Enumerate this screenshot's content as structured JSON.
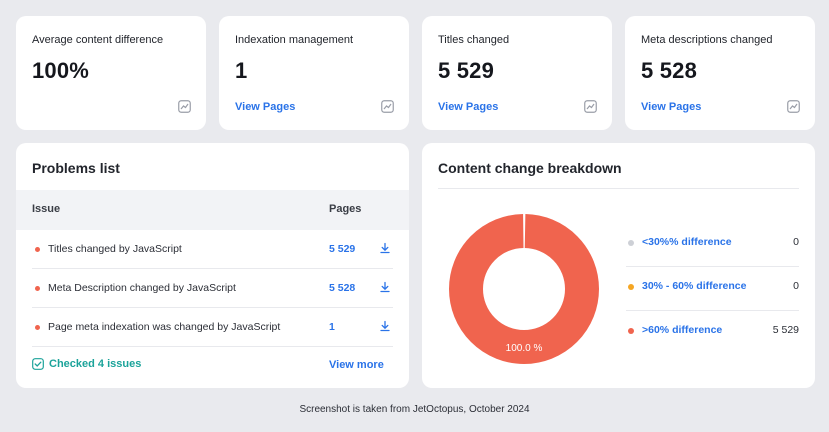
{
  "metrics": [
    {
      "title": "Average content difference",
      "value": "100%",
      "link": "",
      "icon": "chart-icon"
    },
    {
      "title": "Indexation management",
      "value": "1",
      "link": "View Pages",
      "icon": "chart-icon"
    },
    {
      "title": "Titles changed",
      "value": "5 529",
      "link": "View Pages",
      "icon": "chart-icon"
    },
    {
      "title": "Meta descriptions changed",
      "value": "5 528",
      "link": "View Pages",
      "icon": "chart-icon"
    }
  ],
  "problems": {
    "title": "Problems list",
    "col_issue": "Issue",
    "col_pages": "Pages",
    "rows": [
      {
        "issue": "Titles changed by JavaScript",
        "pages": "5 529"
      },
      {
        "issue": "Meta Description changed by JavaScript",
        "pages": "5 528"
      },
      {
        "issue": "Page meta indexation was changed by JavaScript",
        "pages": "1"
      }
    ],
    "checked": "Checked 4 issues",
    "view_more": "View more",
    "dot_color": "#f0644e"
  },
  "breakdown": {
    "title": "Content change breakdown",
    "donut_label": "100.0 %",
    "legend": [
      {
        "label": "<30%% difference",
        "value": "0",
        "color": "#cdd0d6"
      },
      {
        "label": "30% - 60% difference",
        "value": "0",
        "color": "#f5a623"
      },
      {
        "label": ">60% difference",
        "value": "5 529",
        "color": "#f0644e"
      }
    ]
  },
  "chart_data": {
    "type": "pie",
    "categories": [
      "<30%% difference",
      "30% - 60% difference",
      ">60% difference"
    ],
    "values": [
      0,
      0,
      5529
    ],
    "colors": [
      "#cdd0d6",
      "#f5a623",
      "#f0644e"
    ]
  },
  "footer": "Screenshot is taken from JetOctopus, October 2024",
  "colors": {
    "accent": "#2a73e8",
    "success": "#1ba39a",
    "danger": "#f0644e",
    "background": "#e9eaee"
  }
}
